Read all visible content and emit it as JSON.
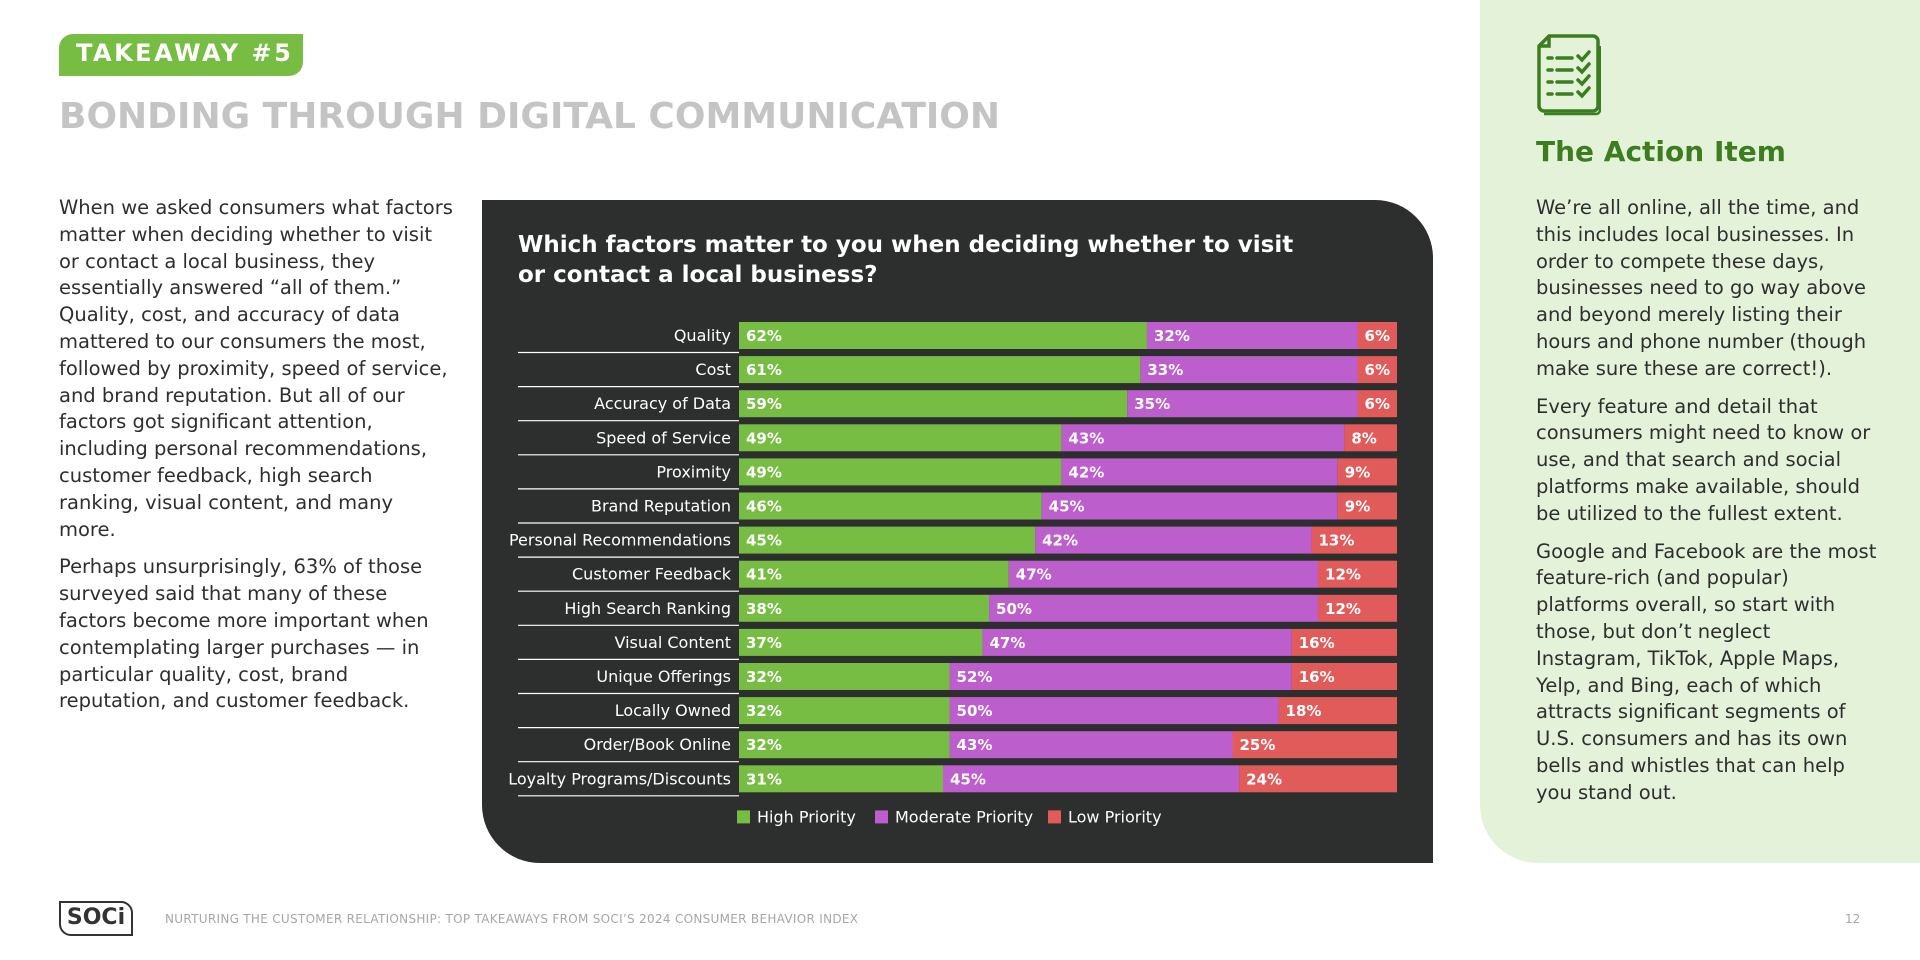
{
  "badge": "TAKEAWAY #5",
  "headline": "BONDING THROUGH DIGITAL COMMUNICATION",
  "intro": {
    "p1": "When we asked consumers what factors matter when deciding whether to visit or contact a local business, they essentially answered “all of them.” Quality, cost, and accuracy of data mattered to our consumers the most, followed by proximity, speed of service, and brand reputation. But all of our factors got significant attention, including personal recommendations, customer feedback, high search ranking, visual content, and many more.",
    "p2": "Perhaps unsurprisingly, 63% of those surveyed said that many of these factors become more important when contemplating larger purchases — in particular quality, cost, brand reputation, and customer feedback."
  },
  "chart_data": {
    "type": "bar",
    "orientation": "horizontal-stacked-100",
    "title": "Which factors matter to you when deciding whether to visit or contact a local business?",
    "categories": [
      "Quality",
      "Cost",
      "Accuracy of Data",
      "Speed of Service",
      "Proximity",
      "Brand Reputation",
      "Personal Recommendations",
      "Customer Feedback",
      "High Search Ranking",
      "Visual Content",
      "Unique Offerings",
      "Locally Owned",
      "Order/Book Online",
      "Loyalty Programs/Discounts"
    ],
    "series": [
      {
        "name": "High Priority",
        "color": "#77bd43",
        "values": [
          62,
          61,
          59,
          49,
          49,
          46,
          45,
          41,
          38,
          37,
          32,
          32,
          32,
          31
        ]
      },
      {
        "name": "Moderate Priority",
        "color": "#bc5fcc",
        "values": [
          32,
          33,
          35,
          43,
          42,
          45,
          42,
          47,
          50,
          47,
          52,
          50,
          43,
          45
        ]
      },
      {
        "name": "Low Priority",
        "color": "#e25b5b",
        "values": [
          6,
          6,
          6,
          8,
          9,
          9,
          13,
          12,
          12,
          16,
          16,
          18,
          25,
          24
        ]
      }
    ],
    "value_suffix": "%",
    "xlim": [
      0,
      100
    ],
    "legend": "bottom-center"
  },
  "aside": {
    "title": "The Action Item",
    "p1": "We’re all online, all the time, and this includes local businesses. In order to compete these days, businesses need to go way above and beyond merely listing their hours and phone number (though make sure these are correct!).",
    "p2": "Every feature and detail that consumers might need to know or use, and that search and social platforms make available, should be utilized to the fullest extent.",
    "p3": "Google and Facebook are the most feature-rich (and popular) platforms overall, so start with those, but don’t neglect Instagram, TikTok, Apple Maps, Yelp, and Bing, each of which attracts significant segments of U.S. consumers and has its own bells and whistles that can help you stand out.",
    "icon": "checklist-icon"
  },
  "footer": {
    "logo": "SOCi",
    "text": "NURTURING THE CUSTOMER RELATIONSHIP: TOP TAKEAWAYS FROM SOCI’S 2024 CONSUMER BEHAVIOR INDEX",
    "page": "12"
  }
}
